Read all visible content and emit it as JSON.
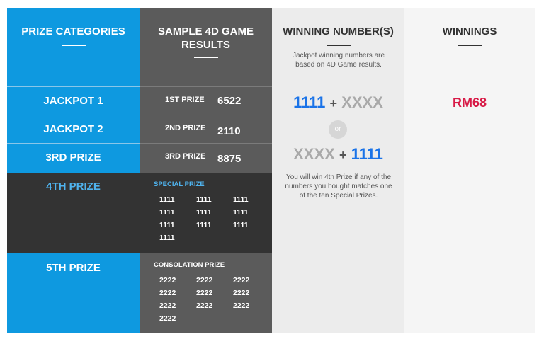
{
  "columns": {
    "categories": "PRIZE CATEGORIES",
    "results": "SAMPLE 4D GAME RESULTS",
    "winning_numbers": "WINNING NUMBER(S)",
    "winnings": "WINNINGS"
  },
  "categories": [
    "JACKPOT 1",
    "JACKPOT 2",
    "3RD PRIZE",
    "4TH PRIZE",
    "5TH PRIZE"
  ],
  "results": {
    "top": [
      {
        "label": "1ST PRIZE",
        "number": "6522"
      },
      {
        "label": "2ND PRIZE",
        "number": "2110"
      },
      {
        "label": "3RD PRIZE",
        "number": "8875"
      }
    ],
    "special_title": "SPECIAL PRIZE",
    "special": [
      "1111",
      "1111",
      "1111",
      "1111",
      "1111",
      "1111",
      "1111",
      "1111",
      "1111",
      "1111"
    ],
    "consolation_title": "CONSOLATION PRIZE",
    "consolation": [
      "2222",
      "2222",
      "2222",
      "2222",
      "2222",
      "2222",
      "2222",
      "2222",
      "2222",
      "2222"
    ]
  },
  "winning": {
    "note_top": "Jackpot winning numbers are based on 4D Game results.",
    "combo1_a": "1111",
    "combo1_plus": "+",
    "combo1_b": "XXXX",
    "or": "or",
    "combo2_a": "XXXX",
    "combo2_plus": "+",
    "combo2_b": "1111",
    "note_bottom": "You will win 4th Prize if any of the numbers you bought matches one of the ten Special Prizes."
  },
  "winnings": {
    "amount": "RM68"
  },
  "colors": {
    "blue_column": "#0e99e0",
    "grey_column": "#5b5b5b",
    "dark_band": "#333333",
    "winnings_red": "#d81b47",
    "number_blue": "#1a73e8"
  }
}
